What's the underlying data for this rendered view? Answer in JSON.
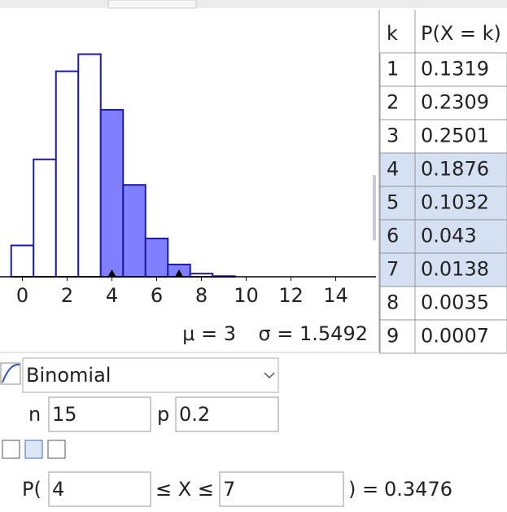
{
  "chart_data": {
    "type": "bar",
    "x": [
      0,
      1,
      2,
      3,
      4,
      5,
      6,
      7,
      8,
      9
    ],
    "values": [
      0.0352,
      0.1319,
      0.2309,
      0.2501,
      0.1876,
      0.1032,
      0.043,
      0.0138,
      0.0035,
      0.0007
    ],
    "xlim": [
      -1,
      15.8
    ],
    "ylim": [
      0,
      0.3
    ],
    "xticks": [
      0,
      2,
      4,
      6,
      8,
      10,
      12,
      14
    ],
    "color": "#7f7fff",
    "edge_color": "#1c1ca8",
    "stats": [
      "μ = 3",
      "σ = 1.5492"
    ]
  },
  "table": {
    "header": [
      "k",
      "P(X = k)"
    ],
    "rows": [
      [
        1,
        0.1319
      ],
      [
        2,
        0.2309
      ],
      [
        3,
        0.2501
      ],
      [
        4,
        0.1876
      ],
      [
        5,
        0.1032
      ],
      [
        6,
        0.043
      ],
      [
        7,
        0.0138
      ],
      [
        8,
        0.0035
      ],
      [
        9,
        0.0007
      ]
    ]
  },
  "controls": {
    "distribution": "Binomial",
    "params": [
      {
        "name": "n",
        "value": 15
      },
      {
        "name": "p",
        "value": 0.2
      }
    ],
    "interval": {
      "prefix": "P(",
      "lower": 4,
      "middle": "≤ X ≤",
      "upper": 7,
      "suffix": ") =",
      "result": 0.3476
    }
  }
}
